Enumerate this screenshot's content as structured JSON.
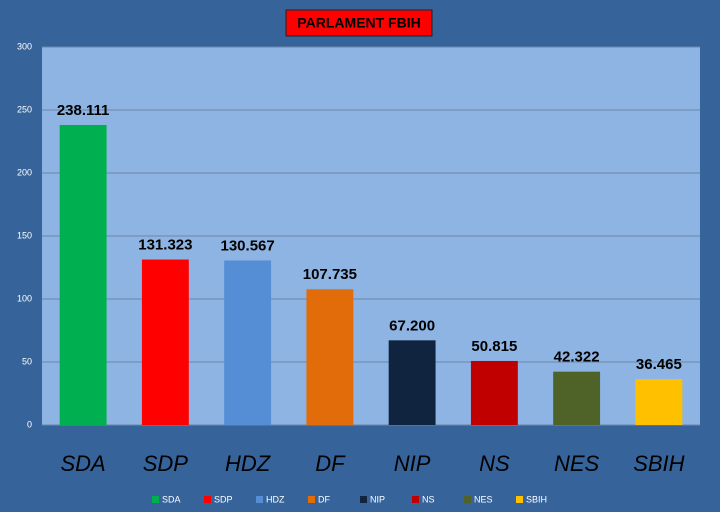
{
  "chart_data": {
    "type": "bar",
    "title": "PARLAMENT FBIH",
    "categories": [
      "SDA",
      "SDP",
      "HDZ",
      "DF",
      "NIP",
      "NS",
      "NES",
      "SBIH"
    ],
    "values": [
      238.111,
      131.323,
      130.567,
      107.735,
      67.2,
      50.815,
      42.322,
      36.465
    ],
    "value_labels": [
      "238.111",
      "131.323",
      "130.567",
      "107.735",
      "67.200",
      "50.815",
      "42.322",
      "36.465"
    ],
    "colors": [
      "#00b050",
      "#ff0000",
      "#558ed5",
      "#e36c0a",
      "#10243f",
      "#c00000",
      "#4f6228",
      "#ffc000"
    ],
    "ylim": [
      0,
      300
    ],
    "yticks": [
      0,
      50,
      100,
      150,
      200,
      250,
      300
    ],
    "grid": true
  }
}
